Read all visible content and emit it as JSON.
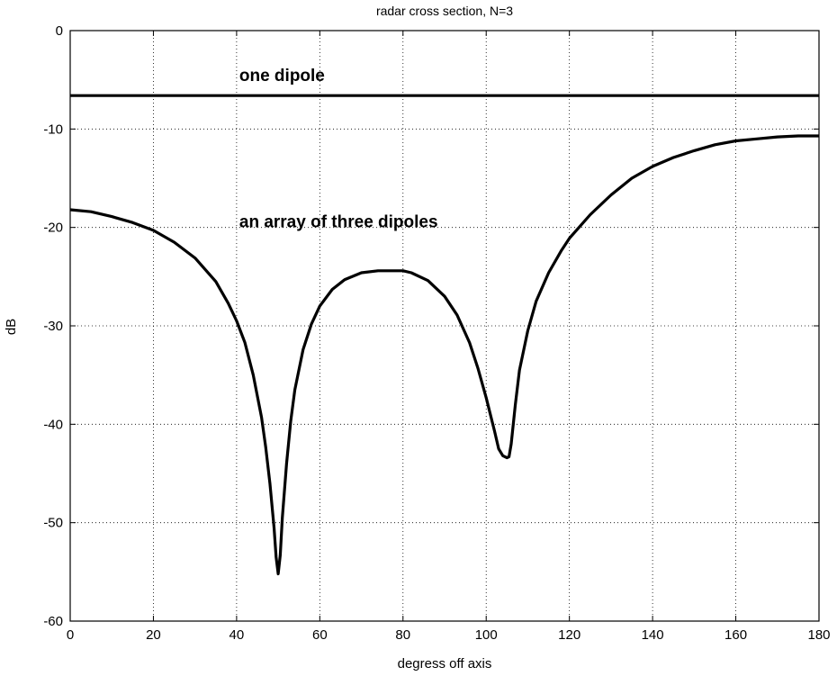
{
  "chart_data": {
    "type": "line",
    "title": "radar cross section, N=3",
    "xlabel": "degress off axis",
    "ylabel": "dB",
    "xlim": [
      0,
      180
    ],
    "ylim": [
      -60,
      0
    ],
    "xticks": [
      0,
      20,
      40,
      60,
      80,
      100,
      120,
      140,
      160,
      180
    ],
    "yticks": [
      0,
      -10,
      -20,
      -30,
      -40,
      -50,
      -60
    ],
    "grid": true,
    "series": [
      {
        "name": "one dipole",
        "x": [
          0,
          180
        ],
        "y": [
          -6.6,
          -6.6
        ]
      },
      {
        "name": "an array of three dipoles",
        "x": [
          0,
          5,
          10,
          15,
          20,
          25,
          30,
          35,
          38,
          40,
          42,
          44,
          46,
          47,
          48,
          49,
          49.5,
          50,
          50.5,
          51,
          52,
          53,
          54,
          56,
          58,
          60,
          63,
          66,
          70,
          74,
          78,
          80,
          82,
          86,
          90,
          93,
          96,
          98,
          100,
          102,
          103,
          104,
          105,
          105.5,
          106,
          107,
          108,
          110,
          112,
          115,
          118,
          120,
          125,
          130,
          135,
          140,
          145,
          150,
          155,
          160,
          165,
          170,
          175,
          180
        ],
        "y": [
          -18.2,
          -18.4,
          -18.9,
          -19.5,
          -20.3,
          -21.5,
          -23.1,
          -25.5,
          -27.7,
          -29.5,
          -31.7,
          -35.0,
          -39.3,
          -42.3,
          -46.0,
          -50.5,
          -53.5,
          -55.2,
          -53.3,
          -49.5,
          -44.0,
          -39.7,
          -36.5,
          -32.4,
          -29.8,
          -28.0,
          -26.3,
          -25.3,
          -24.6,
          -24.4,
          -24.4,
          -24.4,
          -24.6,
          -25.4,
          -27.0,
          -28.9,
          -31.7,
          -34.3,
          -37.3,
          -40.7,
          -42.5,
          -43.2,
          -43.4,
          -43.3,
          -42.0,
          -38.0,
          -34.5,
          -30.5,
          -27.5,
          -24.6,
          -22.4,
          -21.1,
          -18.7,
          -16.7,
          -15.0,
          -13.8,
          -12.9,
          -12.2,
          -11.6,
          -11.2,
          -11.0,
          -10.8,
          -10.7,
          -10.7
        ]
      }
    ],
    "annotations": [
      {
        "text": "one dipole",
        "x": 40,
        "y": -5.1
      },
      {
        "text": "an array of three dipoles",
        "x": 40,
        "y": -20.0
      }
    ]
  }
}
